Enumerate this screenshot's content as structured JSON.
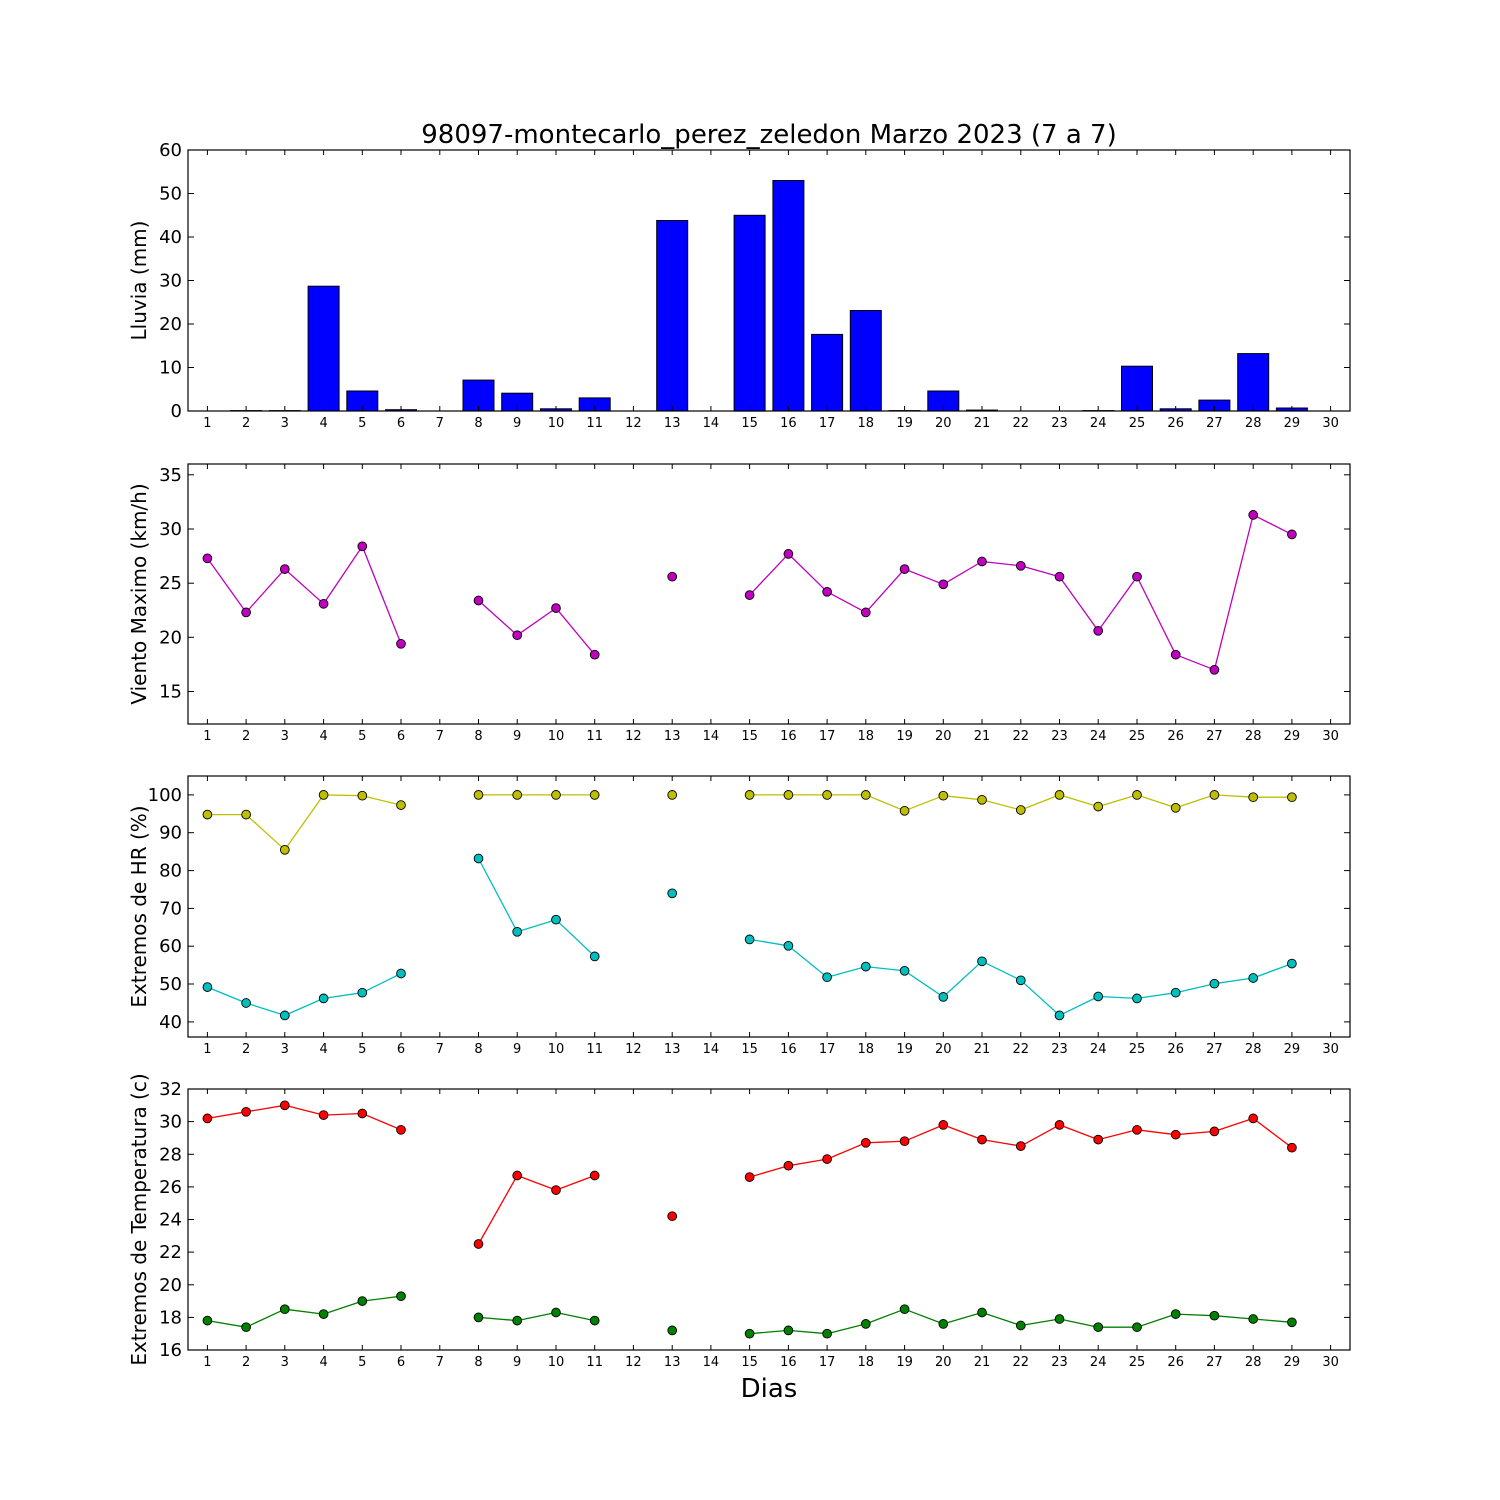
{
  "chart_data": {
    "title": "98097-montecarlo_perez_zeledon Marzo 2023  (7 a 7)",
    "xlabel": "Dias",
    "x_ticks": [
      1,
      2,
      3,
      4,
      5,
      6,
      7,
      8,
      9,
      10,
      11,
      12,
      13,
      14,
      15,
      16,
      17,
      18,
      19,
      20,
      21,
      22,
      23,
      24,
      25,
      26,
      27,
      28,
      29,
      30
    ],
    "xlim": [
      0.5,
      30.5
    ],
    "panels": [
      {
        "type": "bar",
        "ylabel": "Lluvia (mm)",
        "ylim": [
          0,
          60
        ],
        "yticks": [
          0,
          10,
          20,
          30,
          40,
          50,
          60
        ],
        "series": [
          {
            "color": "#0000ff",
            "values": [
              0,
              0.1,
              0.1,
              28.7,
              4.6,
              0.3,
              0,
              7.1,
              4.1,
              0.5,
              3.0,
              0,
              43.8,
              0,
              45.0,
              53.0,
              17.6,
              23.1,
              0.1,
              4.6,
              0.2,
              0,
              0,
              0.1,
              10.3,
              0.5,
              2.5,
              13.2,
              0.7,
              0
            ]
          }
        ]
      },
      {
        "type": "line",
        "ylabel": "Viento Maximo (km/h)",
        "ylim": [
          12,
          36
        ],
        "yticks": [
          15,
          20,
          25,
          30,
          35
        ],
        "series": [
          {
            "color": "#bf00bf",
            "values": [
              27.3,
              22.3,
              26.3,
              23.1,
              28.4,
              19.4,
              null,
              23.4,
              20.2,
              22.7,
              18.4,
              null,
              25.6,
              null,
              23.9,
              27.7,
              24.2,
              22.3,
              26.3,
              24.9,
              27.0,
              26.6,
              25.6,
              20.6,
              25.6,
              18.4,
              17.0,
              31.3,
              29.5,
              null
            ]
          }
        ]
      },
      {
        "type": "line",
        "ylabel": "Extremos de HR (%)",
        "ylim": [
          36,
          105
        ],
        "yticks": [
          40,
          50,
          60,
          70,
          80,
          90,
          100
        ],
        "series": [
          {
            "color": "#bfbf00",
            "values": [
              94.8,
              94.8,
              85.5,
              100,
              99.8,
              97.3,
              null,
              100,
              100,
              100,
              100,
              null,
              100,
              null,
              100,
              100,
              100,
              100,
              95.8,
              99.8,
              98.7,
              96.0,
              100,
              96.9,
              100,
              96.6,
              100,
              99.4,
              99.4,
              null
            ]
          },
          {
            "color": "#00bfbf",
            "values": [
              49.2,
              45.0,
              41.7,
              46.2,
              47.7,
              52.8,
              null,
              83.2,
              63.8,
              67.0,
              57.3,
              null,
              74.0,
              null,
              61.8,
              60.1,
              51.8,
              54.6,
              53.5,
              46.6,
              56.0,
              51.0,
              41.7,
              46.7,
              46.2,
              47.7,
              50.1,
              51.6,
              55.4,
              null
            ]
          }
        ]
      },
      {
        "type": "line",
        "ylabel": "Extremos de Temperatura (c)",
        "ylim": [
          16,
          32
        ],
        "yticks": [
          16,
          18,
          20,
          22,
          24,
          26,
          28,
          30,
          32
        ],
        "series": [
          {
            "color": "#ff0000",
            "values": [
              30.2,
              30.6,
              31.0,
              30.4,
              30.5,
              29.5,
              null,
              22.5,
              26.7,
              25.8,
              26.7,
              null,
              24.2,
              null,
              26.6,
              27.3,
              27.7,
              28.7,
              28.8,
              29.8,
              28.9,
              28.5,
              29.8,
              28.9,
              29.5,
              29.2,
              29.4,
              30.2,
              28.4,
              null
            ]
          },
          {
            "color": "#008000",
            "values": [
              17.8,
              17.4,
              18.5,
              18.2,
              19.0,
              19.3,
              null,
              18.0,
              17.8,
              18.3,
              17.8,
              null,
              17.2,
              null,
              17.0,
              17.2,
              17.0,
              17.6,
              18.5,
              17.6,
              18.3,
              17.5,
              17.9,
              17.4,
              17.4,
              18.2,
              18.1,
              17.9,
              17.7,
              null
            ]
          }
        ]
      }
    ]
  }
}
